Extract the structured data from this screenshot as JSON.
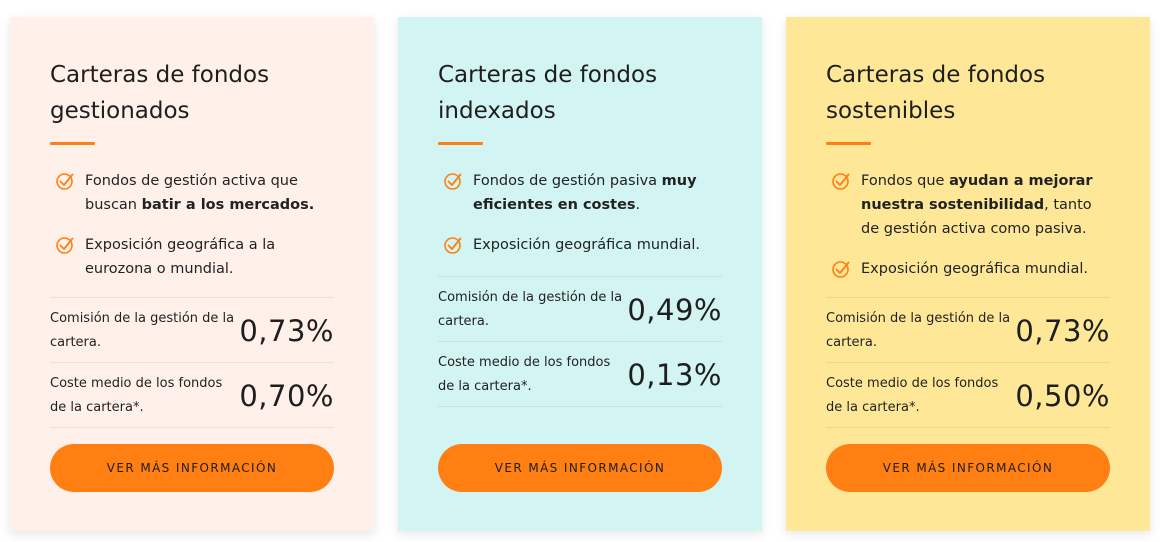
{
  "theme": {
    "accent": "#ff7f12",
    "card_backgrounds": [
      "#fff1e9",
      "#d2f4f2",
      "#fee897"
    ]
  },
  "cards": [
    {
      "title": "Carteras de fondos gestionados",
      "features": [
        {
          "icon": "check-circle-icon",
          "parts": [
            {
              "text": "Fondos de gestión activa que buscan ",
              "bold": false
            },
            {
              "text": "batir a los mercados.",
              "bold": true
            }
          ]
        },
        {
          "icon": "check-circle-icon",
          "parts": [
            {
              "text": "Exposición geográfica a la eurozona o mundial.",
              "bold": false
            }
          ]
        }
      ],
      "metrics": [
        {
          "label": "Comisión de la gestión de la cartera.",
          "value": "0,73%"
        },
        {
          "label": "Coste medio de los fondos de la cartera*.",
          "value": "0,70%"
        }
      ],
      "button_label": "VER MÁS INFORMACIÓN"
    },
    {
      "title": "Carteras de fondos indexados",
      "features": [
        {
          "icon": "check-circle-icon",
          "parts": [
            {
              "text": "Fondos de gestión pasiva ",
              "bold": false
            },
            {
              "text": "muy eficientes en costes",
              "bold": true
            },
            {
              "text": ".",
              "bold": false
            }
          ]
        },
        {
          "icon": "check-circle-icon",
          "parts": [
            {
              "text": "Exposición geográfica mundial.",
              "bold": false
            }
          ]
        }
      ],
      "metrics": [
        {
          "label": "Comisión de la gestión de la cartera.",
          "value": "0,49%"
        },
        {
          "label": "Coste medio de los fondos de la cartera*.",
          "value": "0,13%"
        }
      ],
      "button_label": "VER MÁS INFORMACIÓN"
    },
    {
      "title": "Carteras de fondos sostenibles",
      "features": [
        {
          "icon": "check-circle-icon",
          "parts": [
            {
              "text": "Fondos que ",
              "bold": false
            },
            {
              "text": "ayudan a mejorar nuestra sostenibilidad",
              "bold": true
            },
            {
              "text": ", tanto de gestión activa como pasiva.",
              "bold": false
            }
          ]
        },
        {
          "icon": "check-circle-icon",
          "parts": [
            {
              "text": "Exposición geográfica mundial.",
              "bold": false
            }
          ]
        }
      ],
      "metrics": [
        {
          "label": "Comisión de la gestión de la cartera.",
          "value": "0,73%"
        },
        {
          "label": "Coste medio de los fondos de la cartera*.",
          "value": "0,50%"
        }
      ],
      "button_label": "VER MÁS INFORMACIÓN"
    }
  ]
}
